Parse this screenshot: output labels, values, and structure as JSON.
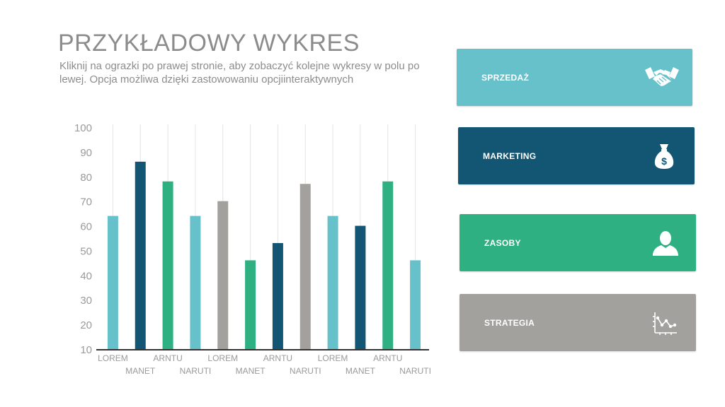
{
  "header": {
    "title": "PRZYKŁADOWY WYKRES",
    "subtitle": "Kliknij na ograzki po prawej stronie, aby zobaczyć kolejne wykresy w polu po lewej. Opcja możliwa dzięki zastowowaniu opcjiinteraktywnych"
  },
  "colors": {
    "teal_light": "#66c1cb",
    "navy": "#125674",
    "green": "#2fb083",
    "gray": "#a3a19d",
    "text": "#8c8c8c",
    "axis": "#333333",
    "grid": "#e4e4e4"
  },
  "cards": [
    {
      "label": "SPRZEDAŻ",
      "icon": "handshake-icon",
      "color": "#66c1cb"
    },
    {
      "label": "MARKETING",
      "icon": "money-bag-icon",
      "color": "#125674"
    },
    {
      "label": "ZASOBY",
      "icon": "person-icon",
      "color": "#2fb083"
    },
    {
      "label": "STRATEGIA",
      "icon": "line-chart-icon",
      "color": "#a3a19d"
    }
  ],
  "chart_data": {
    "type": "bar",
    "title": "",
    "xlabel": "",
    "ylabel": "",
    "ylim": [
      10,
      100
    ],
    "yticks": [
      100,
      90,
      80,
      70,
      60,
      50,
      40,
      30,
      20,
      10
    ],
    "grid": "vertical",
    "categories": [
      "LOREM",
      "MANET",
      "ARNTU",
      "NARUTI",
      "LOREM",
      "MANET",
      "ARNTU",
      "NARUTI",
      "LOREM",
      "MANET",
      "ARNTU",
      "NARUTI"
    ],
    "values": [
      64,
      86,
      78,
      64,
      70,
      46,
      53,
      77,
      64,
      60,
      78,
      46
    ],
    "bar_colors": [
      "#66c1cb",
      "#125674",
      "#2fb083",
      "#66c1cb",
      "#a3a19d",
      "#2fb083",
      "#125674",
      "#a3a19d",
      "#66c1cb",
      "#125674",
      "#2fb083",
      "#66c1cb"
    ]
  }
}
